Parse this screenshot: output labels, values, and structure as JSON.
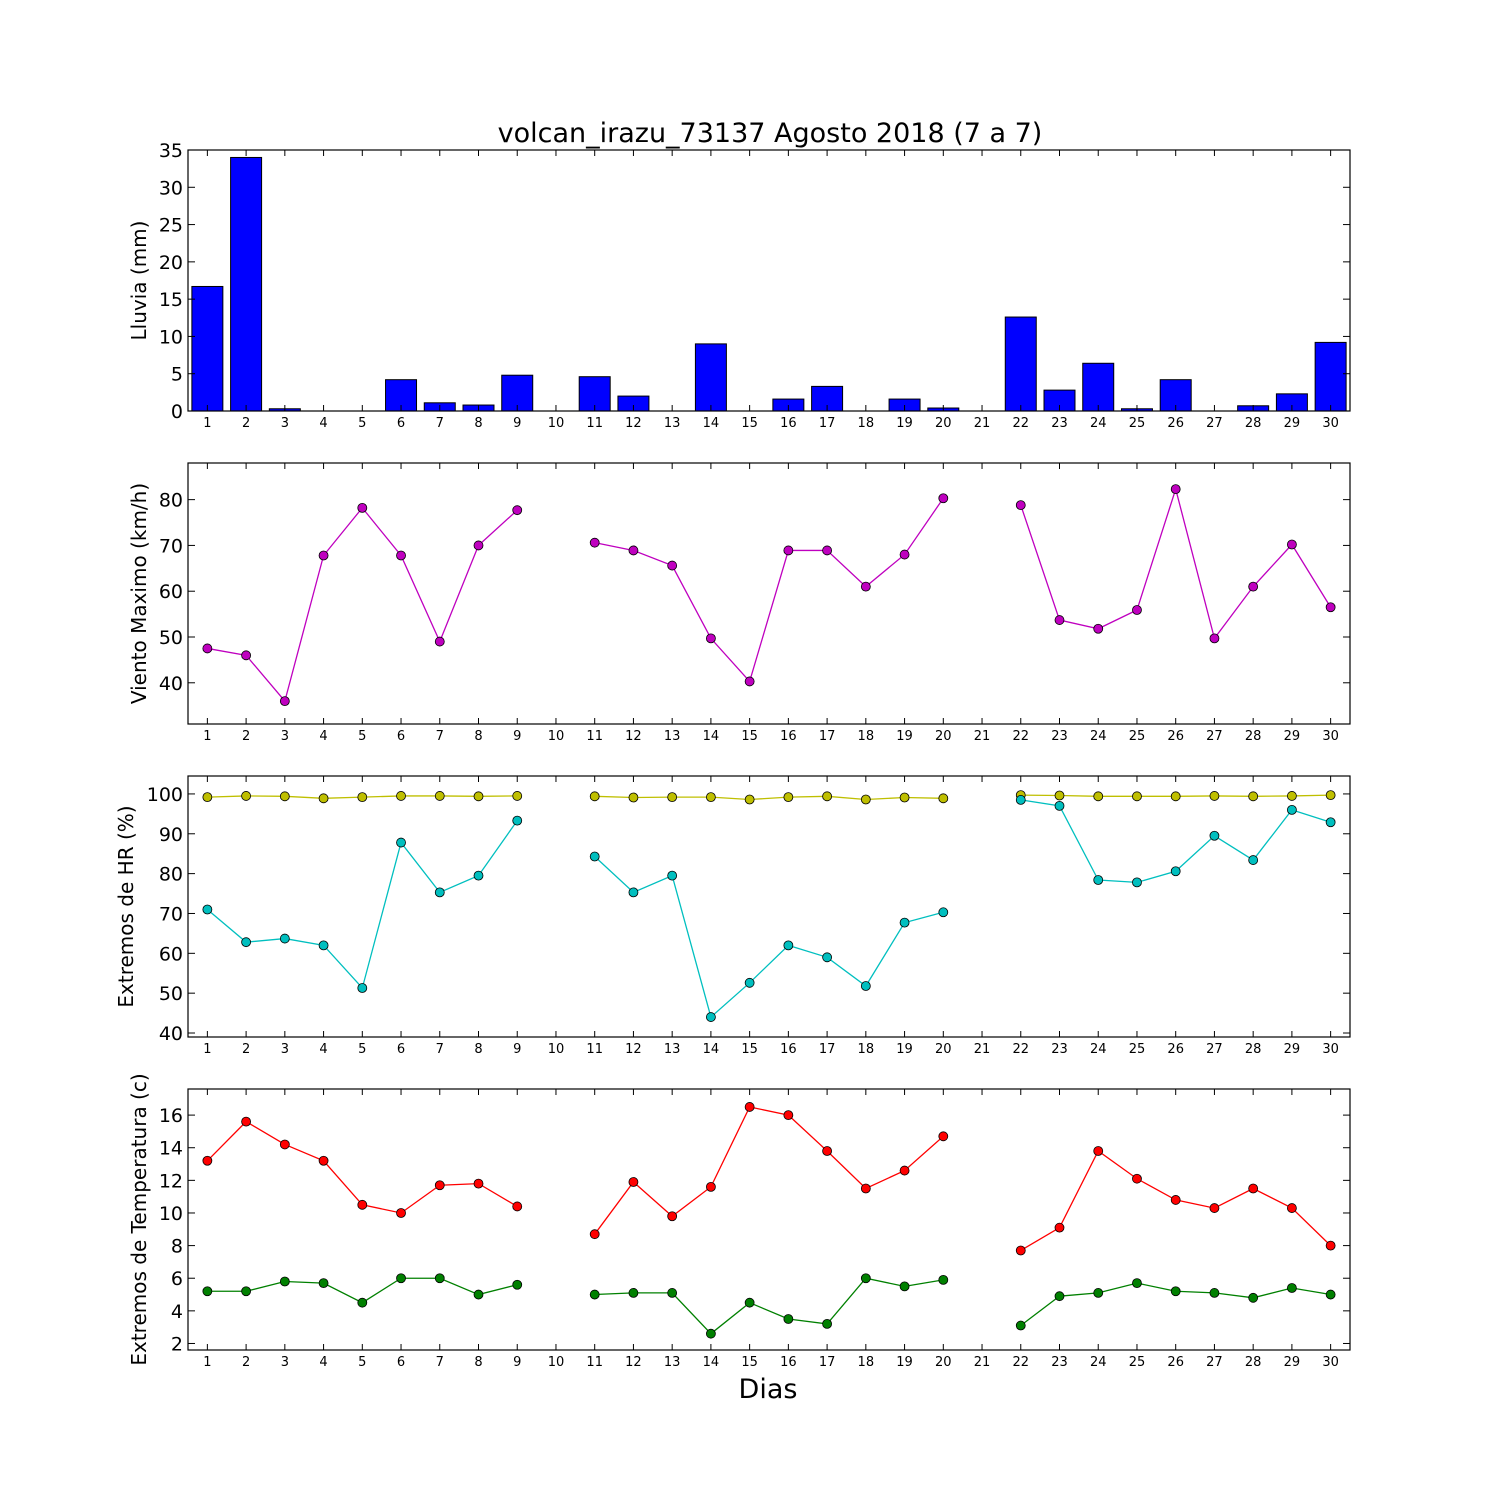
{
  "figure": {
    "title": "volcan_irazu_73137 Agosto 2018  (7 a 7)",
    "xlabel": "Dias"
  },
  "chart_data": [
    {
      "type": "bar",
      "ylabel": "Lluvia (mm)",
      "categories": [
        1,
        2,
        3,
        4,
        5,
        6,
        7,
        8,
        9,
        10,
        11,
        12,
        13,
        14,
        15,
        16,
        17,
        18,
        19,
        20,
        21,
        22,
        23,
        24,
        25,
        26,
        27,
        28,
        29,
        30
      ],
      "xlim": [
        0.5,
        30.5
      ],
      "ylim": [
        0,
        35
      ],
      "yticks": [
        0,
        5,
        10,
        15,
        20,
        25,
        30,
        35
      ],
      "grid": false,
      "color": "#0000ff",
      "values": [
        16.7,
        34.0,
        0.3,
        0,
        0,
        4.2,
        1.1,
        0.8,
        4.8,
        0,
        4.6,
        2.0,
        0,
        9.0,
        0,
        1.6,
        3.3,
        0,
        1.6,
        0.4,
        0,
        12.6,
        2.8,
        6.4,
        0.3,
        4.2,
        0,
        0.7,
        2.3,
        9.2
      ]
    },
    {
      "type": "line",
      "ylabel": "Viento Maximo (km/h)",
      "x": [
        1,
        2,
        3,
        4,
        5,
        6,
        7,
        8,
        9,
        10,
        11,
        12,
        13,
        14,
        15,
        16,
        17,
        18,
        19,
        20,
        21,
        22,
        23,
        24,
        25,
        26,
        27,
        28,
        29,
        30
      ],
      "xlim": [
        0.5,
        30.5
      ],
      "ylim": [
        31,
        88
      ],
      "yticks": [
        40,
        50,
        60,
        70,
        80
      ],
      "grid": false,
      "series": [
        {
          "color": "#bf00bf",
          "values": [
            47.5,
            46.0,
            36.0,
            67.8,
            78.2,
            67.8,
            49.0,
            70.0,
            77.7,
            null,
            70.6,
            68.9,
            65.6,
            49.7,
            40.3,
            68.9,
            68.9,
            61.0,
            68.0,
            80.3,
            null,
            78.8,
            53.7,
            51.8,
            55.9,
            82.3,
            49.7,
            61.0,
            70.2,
            56.5
          ]
        }
      ]
    },
    {
      "type": "line",
      "ylabel": "Extremos de HR (%)",
      "x": [
        1,
        2,
        3,
        4,
        5,
        6,
        7,
        8,
        9,
        10,
        11,
        12,
        13,
        14,
        15,
        16,
        17,
        18,
        19,
        20,
        21,
        22,
        23,
        24,
        25,
        26,
        27,
        28,
        29,
        30
      ],
      "xlim": [
        0.5,
        30.5
      ],
      "ylim": [
        39,
        104.5
      ],
      "yticks": [
        40,
        50,
        60,
        70,
        80,
        90,
        100
      ],
      "grid": false,
      "series": [
        {
          "color": "#bfbf00",
          "values": [
            99.2,
            99.5,
            99.4,
            98.9,
            99.2,
            99.5,
            99.5,
            99.4,
            99.5,
            null,
            99.4,
            99.1,
            99.2,
            99.2,
            98.6,
            99.2,
            99.4,
            98.6,
            99.1,
            98.9,
            null,
            99.7,
            99.6,
            99.4,
            99.4,
            99.4,
            99.5,
            99.4,
            99.5,
            99.7
          ]
        },
        {
          "color": "#00bfbf",
          "values": [
            71.0,
            62.8,
            63.7,
            62.0,
            51.3,
            87.8,
            75.3,
            79.5,
            93.3,
            null,
            84.3,
            75.3,
            79.5,
            44.0,
            52.6,
            62.0,
            59.0,
            51.8,
            67.7,
            70.3,
            null,
            98.5,
            97.0,
            78.4,
            77.8,
            80.6,
            89.5,
            83.4,
            96.0,
            92.9
          ]
        }
      ]
    },
    {
      "type": "line",
      "ylabel": "Extremos de Temperatura (c)",
      "x": [
        1,
        2,
        3,
        4,
        5,
        6,
        7,
        8,
        9,
        10,
        11,
        12,
        13,
        14,
        15,
        16,
        17,
        18,
        19,
        20,
        21,
        22,
        23,
        24,
        25,
        26,
        27,
        28,
        29,
        30
      ],
      "xlim": [
        0.5,
        30.5
      ],
      "ylim": [
        1.6,
        17.6
      ],
      "yticks": [
        2,
        4,
        6,
        8,
        10,
        12,
        14,
        16
      ],
      "grid": false,
      "series": [
        {
          "color": "#ff0000",
          "values": [
            13.2,
            15.6,
            14.2,
            13.2,
            10.5,
            10.0,
            11.7,
            11.8,
            10.4,
            null,
            8.7,
            11.9,
            9.8,
            11.6,
            16.5,
            16.0,
            13.8,
            11.5,
            12.6,
            14.7,
            null,
            7.7,
            9.1,
            13.8,
            12.1,
            10.8,
            10.3,
            11.5,
            10.3,
            8.0
          ]
        },
        {
          "color": "#008000",
          "values": [
            5.2,
            5.2,
            5.8,
            5.7,
            4.5,
            6.0,
            6.0,
            5.0,
            5.6,
            null,
            5.0,
            5.1,
            5.1,
            2.6,
            4.5,
            3.5,
            3.2,
            6.0,
            5.5,
            5.9,
            null,
            3.1,
            4.9,
            5.1,
            5.7,
            5.2,
            5.1,
            4.8,
            5.4,
            5.0
          ]
        }
      ]
    }
  ]
}
